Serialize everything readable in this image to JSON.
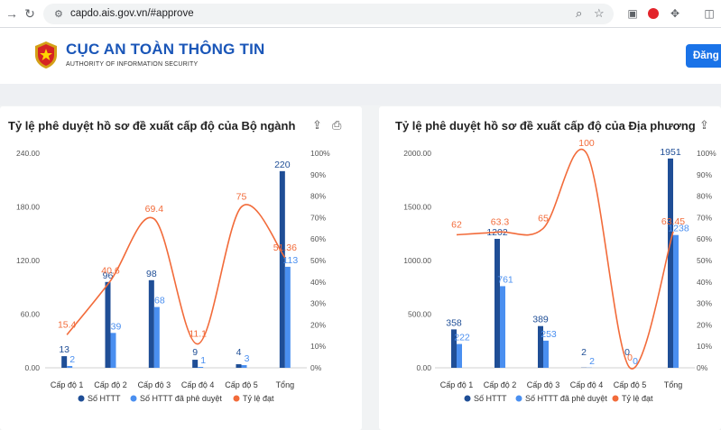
{
  "browser": {
    "url": "capdo.ais.gov.vn/#approve"
  },
  "header": {
    "title": "CỤC AN TOÀN THÔNG TIN",
    "subtitle": "AUTHORITY OF INFORMATION SECURITY",
    "login_label": "Đăng"
  },
  "colors": {
    "total": "#1f4e96",
    "approved": "#4a8ff0",
    "rate": "#f26b3a"
  },
  "chart_data": [
    {
      "type": "bar",
      "title": "Tỷ lệ phê duyệt hồ sơ đề xuất cấp độ của Bộ ngành",
      "categories": [
        "Cấp độ 1",
        "Cấp độ 2",
        "Cấp độ 3",
        "Cấp độ 4",
        "Cấp độ 5",
        "Tổng"
      ],
      "series": [
        {
          "name": "Số HTTT",
          "values": [
            13,
            96,
            98,
            9,
            4,
            220
          ]
        },
        {
          "name": "Số HTTT đã phê duyệt",
          "values": [
            2,
            39,
            68,
            1,
            3,
            113
          ]
        },
        {
          "name": "Tỷ lệ đạt",
          "values": [
            15.4,
            40.6,
            69.4,
            11.1,
            75,
            51.36
          ]
        }
      ],
      "y_ticks": [
        "0.00",
        "60.00",
        "120.00",
        "180.00",
        "240.00"
      ],
      "ylim": [
        0,
        240
      ],
      "y2_ticks": [
        "0%",
        "10%",
        "20%",
        "30%",
        "40%",
        "50%",
        "60%",
        "70%",
        "80%",
        "90%",
        "100%"
      ],
      "y2lim": [
        0,
        100
      ],
      "legend": "bottom"
    },
    {
      "type": "bar",
      "title": "Tỷ lệ phê duyệt hồ sơ đề xuất cấp độ của Địa phương",
      "categories": [
        "Cấp độ 1",
        "Cấp độ 2",
        "Cấp độ 3",
        "Cấp độ 4",
        "Cấp độ 5",
        "Tổng"
      ],
      "series": [
        {
          "name": "Số HTTT",
          "values": [
            358,
            1202,
            389,
            2,
            0,
            1951
          ]
        },
        {
          "name": "Số HTTT đã phê duyệt",
          "values": [
            222,
            761,
            253,
            2,
            0,
            1238
          ]
        },
        {
          "name": "Tỷ lệ đạt",
          "values": [
            62,
            63.3,
            65,
            100,
            0,
            63.45
          ]
        }
      ],
      "y_ticks": [
        "0.00",
        "500.00",
        "1000.00",
        "1500.00",
        "2000.00"
      ],
      "ylim": [
        0,
        2000
      ],
      "y2_ticks": [
        "0%",
        "10%",
        "20%",
        "30%",
        "40%",
        "50%",
        "60%",
        "70%",
        "80%",
        "90%",
        "100%"
      ],
      "y2lim": [
        0,
        100
      ],
      "legend": "bottom"
    }
  ]
}
